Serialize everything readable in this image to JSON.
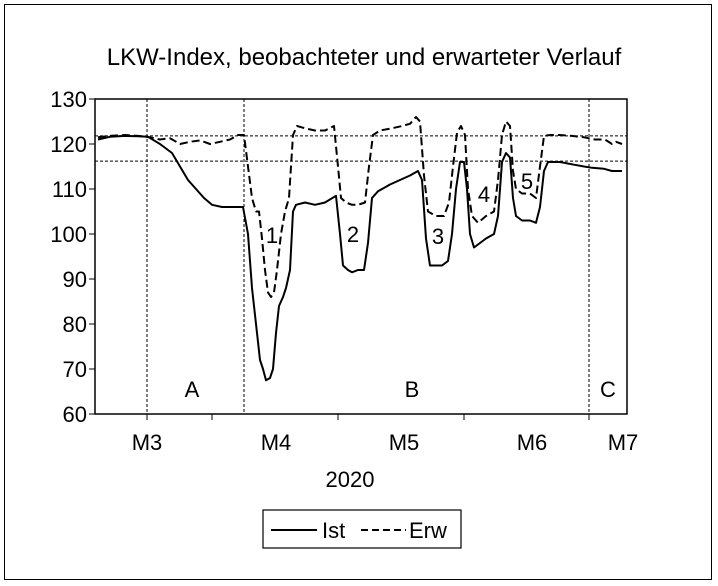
{
  "chart_data": {
    "type": "line",
    "title": "LKW-Index, beobachteter und erwarteter Verlauf",
    "xlabel": "2020",
    "ylim": [
      60,
      130
    ],
    "yticks": [
      60,
      70,
      80,
      90,
      100,
      110,
      120,
      130
    ],
    "month_labels": [
      "M3",
      "M4",
      "M5",
      "M6",
      "M7"
    ],
    "phase_labels": [
      "A",
      "B",
      "C"
    ],
    "dip_labels": [
      "1",
      "2",
      "3",
      "4",
      "5"
    ],
    "reference_lines": [
      121.8,
      116.2
    ],
    "legend": {
      "position": "bottom",
      "ist_label": "Ist",
      "erw_label": "Erw"
    },
    "series": [
      {
        "name": "Ist",
        "style": "solid",
        "points": [
          [
            98,
            121
          ],
          [
            110,
            121.6
          ],
          [
            125,
            121.8
          ],
          [
            138,
            121.7
          ],
          [
            148,
            121.6
          ],
          [
            160,
            120
          ],
          [
            172,
            118
          ],
          [
            180,
            115
          ],
          [
            188,
            112
          ],
          [
            196,
            110
          ],
          [
            204,
            108
          ],
          [
            212,
            106.5
          ],
          [
            222,
            106
          ],
          [
            232,
            106
          ],
          [
            240,
            106
          ],
          [
            243,
            106
          ],
          [
            248,
            100
          ],
          [
            252,
            88
          ],
          [
            256,
            80
          ],
          [
            260,
            72
          ],
          [
            263,
            70
          ],
          [
            266,
            67.5
          ],
          [
            270,
            68
          ],
          [
            273,
            70
          ],
          [
            276,
            78
          ],
          [
            279,
            84
          ],
          [
            283,
            86
          ],
          [
            286,
            88
          ],
          [
            290,
            92
          ],
          [
            293,
            105
          ],
          [
            296,
            106.5
          ],
          [
            305,
            107
          ],
          [
            315,
            106.5
          ],
          [
            325,
            107
          ],
          [
            336,
            108.5
          ],
          [
            340,
            100
          ],
          [
            343,
            93
          ],
          [
            348,
            92
          ],
          [
            352,
            91.5
          ],
          [
            358,
            92
          ],
          [
            364,
            92
          ],
          [
            368,
            98
          ],
          [
            372,
            108
          ],
          [
            378,
            109.5
          ],
          [
            390,
            111
          ],
          [
            400,
            112
          ],
          [
            410,
            113
          ],
          [
            418,
            114
          ],
          [
            422,
            112
          ],
          [
            426,
            99
          ],
          [
            430,
            93
          ],
          [
            436,
            93
          ],
          [
            442,
            93
          ],
          [
            448,
            94
          ],
          [
            452,
            100
          ],
          [
            456,
            110
          ],
          [
            460,
            116
          ],
          [
            464,
            116
          ],
          [
            467,
            110
          ],
          [
            470,
            100
          ],
          [
            474,
            97
          ],
          [
            480,
            98
          ],
          [
            486,
            99
          ],
          [
            494,
            100
          ],
          [
            498,
            104
          ],
          [
            502,
            116
          ],
          [
            506,
            118
          ],
          [
            510,
            117
          ],
          [
            513,
            108
          ],
          [
            516,
            104
          ],
          [
            522,
            103
          ],
          [
            530,
            103
          ],
          [
            536,
            102.5
          ],
          [
            540,
            106
          ],
          [
            544,
            114
          ],
          [
            548,
            116
          ],
          [
            560,
            116
          ],
          [
            572,
            115.5
          ],
          [
            584,
            115
          ],
          [
            592,
            114.7
          ],
          [
            604,
            114.5
          ],
          [
            612,
            114
          ],
          [
            622,
            114
          ]
        ]
      },
      {
        "name": "Erw",
        "style": "dashed",
        "points": [
          [
            98,
            121.5
          ],
          [
            110,
            121.8
          ],
          [
            125,
            122
          ],
          [
            138,
            121.8
          ],
          [
            150,
            121.5
          ],
          [
            160,
            121
          ],
          [
            170,
            121.3
          ],
          [
            180,
            120
          ],
          [
            190,
            120.5
          ],
          [
            200,
            120.8
          ],
          [
            210,
            120
          ],
          [
            220,
            120.5
          ],
          [
            230,
            121
          ],
          [
            238,
            122
          ],
          [
            244,
            122
          ],
          [
            248,
            115
          ],
          [
            252,
            108
          ],
          [
            256,
            105
          ],
          [
            259,
            105
          ],
          [
            262,
            99
          ],
          [
            265,
            92
          ],
          [
            268,
            87
          ],
          [
            271,
            86
          ],
          [
            274,
            87
          ],
          [
            277,
            92
          ],
          [
            281,
            100
          ],
          [
            285,
            105
          ],
          [
            289,
            108
          ],
          [
            293,
            122
          ],
          [
            297,
            124
          ],
          [
            305,
            123.5
          ],
          [
            315,
            123
          ],
          [
            325,
            123
          ],
          [
            334,
            124
          ],
          [
            338,
            115
          ],
          [
            341,
            108
          ],
          [
            346,
            107
          ],
          [
            352,
            106.5
          ],
          [
            358,
            106.5
          ],
          [
            365,
            107
          ],
          [
            369,
            115
          ],
          [
            373,
            122
          ],
          [
            380,
            123
          ],
          [
            392,
            123.5
          ],
          [
            402,
            124
          ],
          [
            410,
            124.5
          ],
          [
            416,
            126
          ],
          [
            420,
            125
          ],
          [
            424,
            113
          ],
          [
            428,
            105
          ],
          [
            436,
            104
          ],
          [
            444,
            104
          ],
          [
            449,
            107
          ],
          [
            453,
            115
          ],
          [
            457,
            122.5
          ],
          [
            461,
            124
          ],
          [
            465,
            122
          ],
          [
            468,
            110
          ],
          [
            472,
            104
          ],
          [
            478,
            102.5
          ],
          [
            486,
            104
          ],
          [
            494,
            105
          ],
          [
            498,
            112
          ],
          [
            502,
            122
          ],
          [
            506,
            125
          ],
          [
            510,
            124
          ],
          [
            513,
            114
          ],
          [
            516,
            110
          ],
          [
            522,
            109
          ],
          [
            530,
            109
          ],
          [
            536,
            108
          ],
          [
            540,
            115
          ],
          [
            544,
            121.8
          ],
          [
            550,
            122
          ],
          [
            560,
            122
          ],
          [
            572,
            121.8
          ],
          [
            584,
            121.5
          ],
          [
            595,
            121
          ],
          [
            605,
            121
          ],
          [
            612,
            120
          ],
          [
            616,
            120.5
          ],
          [
            622,
            120
          ]
        ]
      }
    ]
  }
}
